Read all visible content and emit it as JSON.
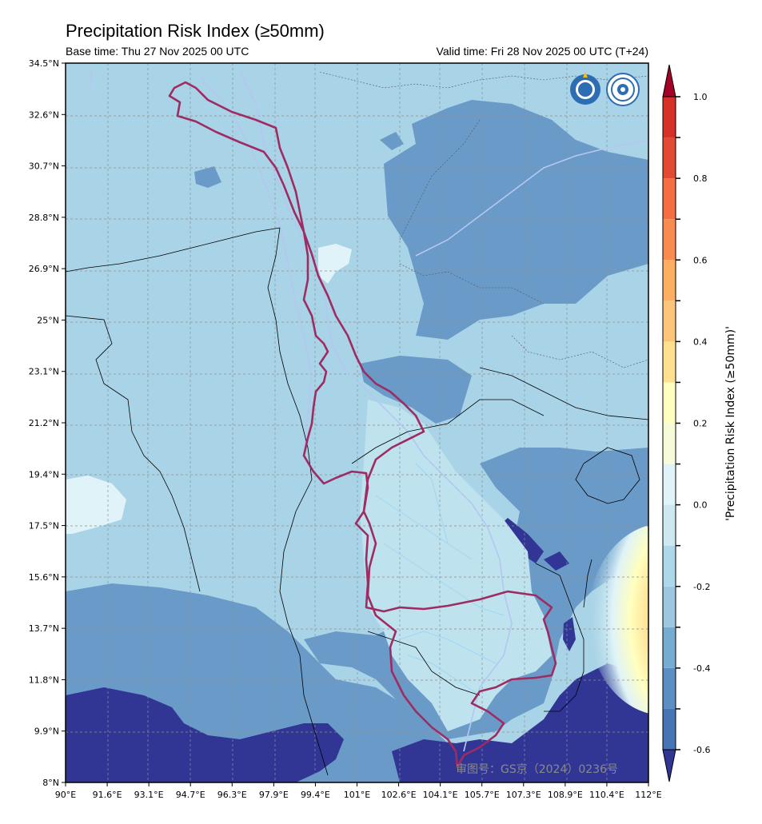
{
  "header": {
    "title": "Precipitation Risk Index (≥50mm)",
    "base_time": "Base time: Thu 27 Nov 2025 00 UTC",
    "valid_time": "Valid time: Fri 28 Nov 2025 00 UTC (T+24)"
  },
  "map": {
    "lat_ticks": [
      "34.5°N",
      "32.6°N",
      "30.7°N",
      "28.8°N",
      "26.9°N",
      "25°N",
      "23.1°N",
      "21.2°N",
      "19.4°N",
      "17.5°N",
      "15.6°N",
      "13.7°N",
      "11.8°N",
      "9.9°N",
      "8°N"
    ],
    "lon_ticks": [
      "90°E",
      "91.6°E",
      "93.1°E",
      "94.7°E",
      "96.3°E",
      "97.9°E",
      "99.4°E",
      "101°E",
      "102.6°E",
      "104.1°E",
      "105.7°E",
      "107.3°E",
      "108.9°E",
      "110.4°E",
      "112°E"
    ],
    "watermark": "审图号：GS京（2024）0236号",
    "logos": [
      "wmo-logo",
      "cma-logo"
    ]
  },
  "colorbar": {
    "label": "'Precipitation Risk Index (≥50mm)'",
    "ticks": [
      "1.0",
      "0.8",
      "0.6",
      "0.4",
      "0.2",
      "0.0",
      "-0.2",
      "-0.4",
      "-0.6"
    ],
    "colors": [
      "#313695",
      "#4575b4",
      "#5b8fc4",
      "#74add1",
      "#9dc6e0",
      "#abd9e9",
      "#cde8f0",
      "#e0f3f8",
      "#f7fbd8",
      "#ffffbf",
      "#fee090",
      "#fdc57a",
      "#fdae61",
      "#f88b4f",
      "#f46d43",
      "#e34a33",
      "#d73027",
      "#a50026"
    ],
    "levels": [
      -0.6,
      -0.5,
      -0.4,
      -0.3,
      -0.2,
      -0.1,
      0.0,
      0.1,
      0.2,
      0.3,
      0.4,
      0.5,
      0.6,
      0.7,
      0.8,
      0.9,
      1.0
    ]
  }
}
